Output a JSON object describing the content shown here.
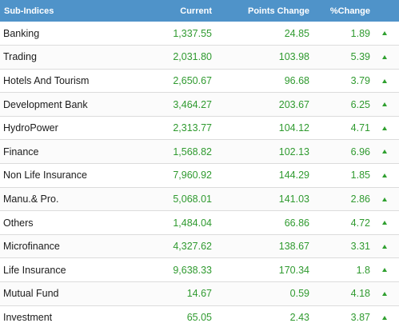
{
  "table": {
    "headers": {
      "name": "Sub-Indices",
      "current": "Current",
      "points_change": "Points Change",
      "pct_change": "%Change"
    },
    "rows": [
      {
        "name": "Banking",
        "current": "1,337.55",
        "points_change": "24.85",
        "pct_change": "1.89",
        "trend": "up-arrow-icon"
      },
      {
        "name": "Trading",
        "current": "2,031.80",
        "points_change": "103.98",
        "pct_change": "5.39",
        "trend": "up-arrow-icon"
      },
      {
        "name": "Hotels And Tourism",
        "current": "2,650.67",
        "points_change": "96.68",
        "pct_change": "3.79",
        "trend": "up-arrow-icon"
      },
      {
        "name": "Development Bank",
        "current": "3,464.27",
        "points_change": "203.67",
        "pct_change": "6.25",
        "trend": "up-arrow-icon"
      },
      {
        "name": "HydroPower",
        "current": "2,313.77",
        "points_change": "104.12",
        "pct_change": "4.71",
        "trend": "up-arrow-icon"
      },
      {
        "name": "Finance",
        "current": "1,568.82",
        "points_change": "102.13",
        "pct_change": "6.96",
        "trend": "up-arrow-icon"
      },
      {
        "name": "Non Life Insurance",
        "current": "7,960.92",
        "points_change": "144.29",
        "pct_change": "1.85",
        "trend": "up-arrow-icon"
      },
      {
        "name": "Manu.& Pro.",
        "current": "5,068.01",
        "points_change": "141.03",
        "pct_change": "2.86",
        "trend": "up-arrow-icon"
      },
      {
        "name": "Others",
        "current": "1,484.04",
        "points_change": "66.86",
        "pct_change": "4.72",
        "trend": "up-arrow-icon"
      },
      {
        "name": "Microfinance",
        "current": "4,327.62",
        "points_change": "138.67",
        "pct_change": "3.31",
        "trend": "up-arrow-icon"
      },
      {
        "name": "Life Insurance",
        "current": "9,638.33",
        "points_change": "170.34",
        "pct_change": "1.8",
        "trend": "up-arrow-icon"
      },
      {
        "name": "Mutual Fund",
        "current": "14.67",
        "points_change": "0.59",
        "pct_change": "4.18",
        "trend": "up-arrow-icon"
      },
      {
        "name": "Investment",
        "current": "65.05",
        "points_change": "2.43",
        "pct_change": "3.87",
        "trend": "up-arrow-icon"
      }
    ]
  },
  "colors": {
    "header_bg": "#4f93c9",
    "header_text": "#ffffff",
    "positive": "#2f9a2f",
    "name_text": "#1b1b1b",
    "row_border": "#dcdcdc"
  }
}
